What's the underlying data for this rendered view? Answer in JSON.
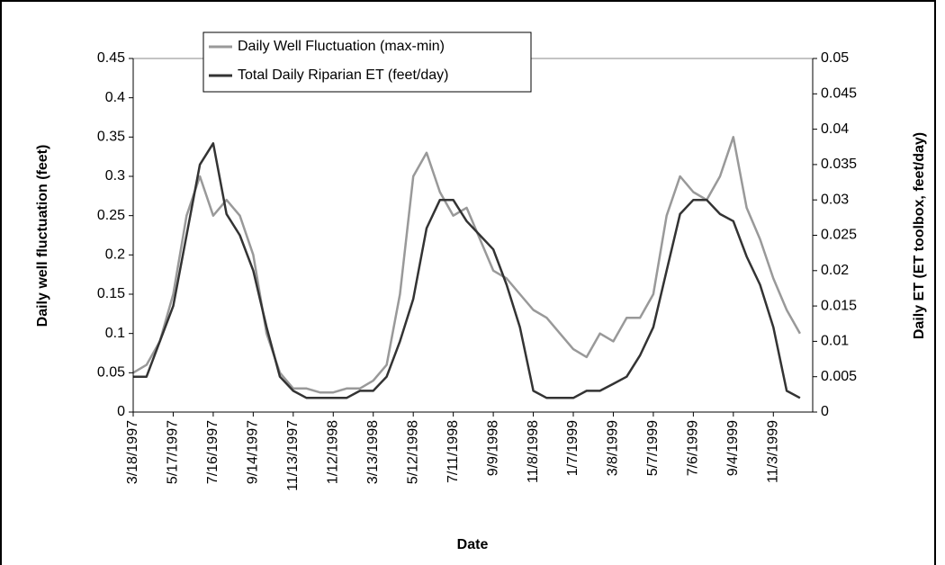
{
  "chart_data": {
    "type": "line",
    "x_label": "Date",
    "y_label": "Daily well fluctuation (feet)",
    "y2_label": "Daily ET (ET toolbox, feet/day)",
    "x": [
      "3/18/1997",
      "4/7/1997",
      "4/27/1997",
      "5/17/1997",
      "6/6/1997",
      "6/26/1997",
      "7/16/1997",
      "8/5/1997",
      "8/25/1997",
      "9/14/1997",
      "10/4/1997",
      "10/24/1997",
      "11/13/1997",
      "12/3/1997",
      "12/23/1997",
      "1/12/1998",
      "2/1/1998",
      "2/21/1998",
      "3/13/1998",
      "4/2/1998",
      "4/22/1998",
      "5/12/1998",
      "6/1/1998",
      "6/21/1998",
      "7/11/1998",
      "7/31/1998",
      "8/20/1998",
      "9/9/1998",
      "9/29/1998",
      "10/19/1998",
      "11/8/1998",
      "11/28/1998",
      "12/18/1998",
      "1/7/1999",
      "1/27/1999",
      "2/16/1999",
      "3/8/1999",
      "3/28/1999",
      "4/17/1999",
      "5/7/1999",
      "5/27/1999",
      "6/16/1999",
      "7/6/1999",
      "7/26/1999",
      "8/15/1999",
      "9/4/1999",
      "9/24/1999",
      "10/14/1999",
      "11/3/1999",
      "11/23/1999",
      "12/13/1999"
    ],
    "xlim": [
      "3/18/1997",
      "1/1/2000"
    ],
    "xticks": [
      "3/18/1997",
      "5/17/1997",
      "7/16/1997",
      "9/14/1997",
      "11/13/1997",
      "1/12/1998",
      "3/13/1998",
      "5/12/1998",
      "7/11/1998",
      "9/9/1998",
      "11/8/1998",
      "1/7/1999",
      "3/8/1999",
      "5/7/1999",
      "7/6/1999",
      "9/4/1999",
      "11/3/1999"
    ],
    "ylim": [
      0,
      0.45
    ],
    "yticks": [
      0,
      0.05,
      0.1,
      0.15,
      0.2,
      0.25,
      0.3,
      0.35,
      0.4,
      0.45
    ],
    "y2lim": [
      0,
      0.05
    ],
    "y2ticks": [
      0,
      0.005,
      0.01,
      0.015,
      0.02,
      0.025,
      0.03,
      0.035,
      0.04,
      0.045,
      0.05
    ],
    "grid": false,
    "legend": "top-left",
    "series": [
      {
        "name": "Daily Well Fluctuation (max-min)",
        "color": "#999999",
        "values": [
          0.05,
          0.06,
          0.09,
          0.15,
          0.25,
          0.3,
          0.25,
          0.27,
          0.25,
          0.2,
          0.1,
          0.05,
          0.03,
          0.03,
          0.025,
          0.025,
          0.03,
          0.03,
          0.04,
          0.06,
          0.15,
          0.3,
          0.33,
          0.28,
          0.25,
          0.26,
          0.22,
          0.18,
          0.17,
          0.15,
          0.13,
          0.12,
          0.1,
          0.08,
          0.07,
          0.1,
          0.09,
          0.12,
          0.12,
          0.15,
          0.25,
          0.3,
          0.28,
          0.27,
          0.3,
          0.35,
          0.26,
          0.22,
          0.17,
          0.13,
          0.1
        ]
      },
      {
        "name": "Total Daily Riparian ET (feet/day)",
        "color": "#333333",
        "axis": "y2",
        "values": [
          0.005,
          0.005,
          0.01,
          0.015,
          0.025,
          0.035,
          0.038,
          0.028,
          0.025,
          0.02,
          0.012,
          0.005,
          0.003,
          0.002,
          0.002,
          0.002,
          0.002,
          0.003,
          0.003,
          0.005,
          0.01,
          0.016,
          0.026,
          0.03,
          0.03,
          0.027,
          0.025,
          0.023,
          0.018,
          0.012,
          0.003,
          0.002,
          0.002,
          0.002,
          0.003,
          0.003,
          0.004,
          0.005,
          0.008,
          0.012,
          0.02,
          0.028,
          0.03,
          0.03,
          0.028,
          0.027,
          0.022,
          0.018,
          0.012,
          0.003,
          0.002
        ]
      }
    ]
  }
}
